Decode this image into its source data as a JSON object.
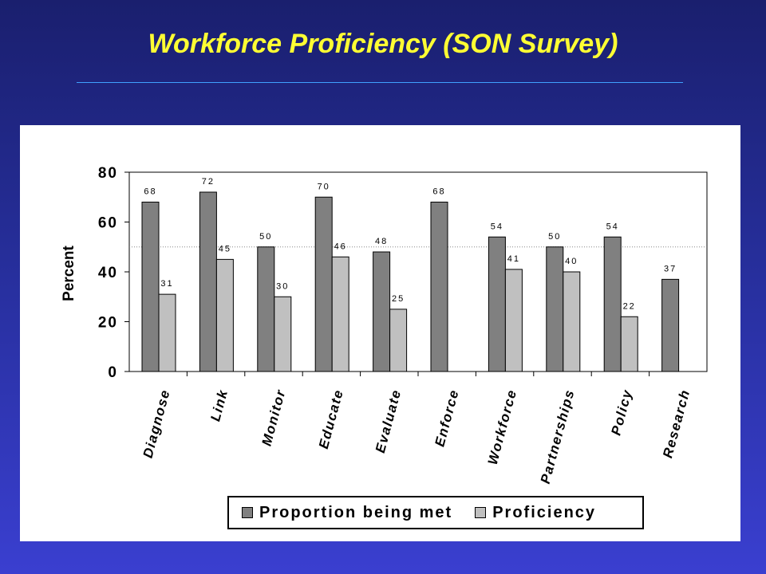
{
  "slide": {
    "title": "Workforce Proficiency (SON Survey)"
  },
  "colors": {
    "title": "#ffff33",
    "rule": "#3fa0ff",
    "series_met": "#808080",
    "series_proficiency": "#c0c0c0"
  },
  "chart_data": {
    "type": "bar",
    "ylabel": "Percent",
    "xlabel": "",
    "ylim": [
      0,
      80
    ],
    "yticks": [
      "0",
      "20",
      "40",
      "60",
      "80"
    ],
    "reference_line": 50,
    "legend_position": "bottom",
    "grid": false,
    "categories": [
      "Diagnose",
      "Link",
      "Monitor",
      "Educate",
      "Evaluate",
      "Enforce",
      "Workforce",
      "Partnerships",
      "Policy",
      "Research"
    ],
    "series": [
      {
        "name": "Proportion being met",
        "values": [
          68,
          72,
          50,
          70,
          48,
          68,
          54,
          50,
          54,
          37
        ]
      },
      {
        "name": "Proficiency",
        "values": [
          31,
          45,
          30,
          46,
          25,
          null,
          41,
          40,
          22,
          null
        ]
      }
    ],
    "data_labels": [
      [
        "68",
        "72",
        "50",
        "70",
        "48",
        "68",
        "54",
        "50",
        "54",
        "37"
      ],
      [
        "31",
        "45",
        "30",
        "46",
        "25",
        "",
        "41",
        "40",
        "22",
        ""
      ]
    ]
  }
}
